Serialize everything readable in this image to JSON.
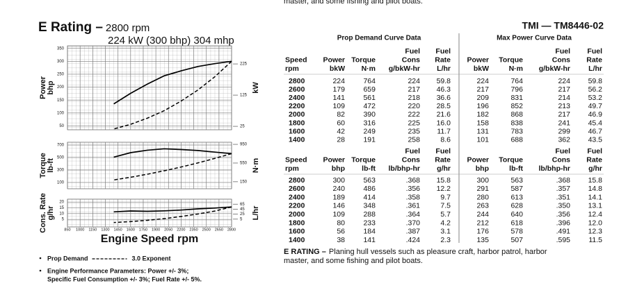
{
  "top_cutoff": "master, and some fishing and pilot boats.",
  "rating": {
    "title": "E Rating –",
    "rpm": "2800 rpm",
    "power": "224 kW (300 bhp) 304 mhp"
  },
  "doc_id": "TMI — TM8446-02",
  "chart": {
    "type": "line",
    "xlim": [
      850,
      2800
    ],
    "xticks": [
      850,
      1000,
      1150,
      1300,
      1450,
      1600,
      1750,
      1900,
      2050,
      2200,
      2350,
      2500,
      2650,
      2800
    ],
    "x_label": "Engine Speed rpm",
    "panels": [
      {
        "label_left": [
          "Power",
          "bhp"
        ],
        "label_right": "kW",
        "ylim": [
          35,
          360
        ],
        "yticks": [
          50,
          100,
          150,
          200,
          250,
          300,
          350
        ],
        "y2lim": [
          14,
          283
        ],
        "y2ticks": [
          25,
          125,
          225
        ]
      },
      {
        "label_left": [
          "Torque",
          "lb-ft"
        ],
        "label_right": "N·m",
        "ylim": [
          0,
          745
        ],
        "yticks": [
          100,
          300,
          500,
          700
        ],
        "y2lim": [
          0,
          995
        ],
        "y2ticks": [
          150,
          550,
          950
        ]
      },
      {
        "label_left": [
          "Cons. Rate",
          "g/hr"
        ],
        "label_right": "L/hr",
        "ylim": [
          -1.5,
          22.5
        ],
        "yticks": [
          5,
          10,
          15,
          20
        ],
        "y2lim": [
          -26,
          85
        ],
        "y2ticks": [
          5,
          25,
          45,
          65
        ]
      }
    ]
  },
  "notes": {
    "prop_demand": "Prop Demand",
    "exponent": "3.0 Exponent",
    "params": [
      "Engine Performance Parameters: Power +/- 3%;",
      "Specific Fuel Consumption  +/- 3%; Fuel Rate +/- 5%."
    ]
  },
  "tables": {
    "group_titles": [
      "Prop Demand Curve Data",
      "Max Power Curve Data"
    ],
    "metric": {
      "header": [
        [
          "Speed",
          "rpm"
        ],
        [
          "Power",
          "bkW"
        ],
        [
          "Torque",
          "N·m"
        ],
        [
          "Fuel",
          "Cons",
          "g/bkW-hr"
        ],
        [
          "Fuel",
          "Rate",
          "L/hr"
        ],
        [
          "Power",
          "bkW"
        ],
        [
          "Torque",
          "N·m"
        ],
        [
          "Fuel",
          "Cons",
          "g/bkW-hr"
        ],
        [
          "Fuel",
          "Rate",
          "L/hr"
        ]
      ],
      "rows": [
        [
          "2800",
          "224",
          "764",
          "224",
          "59.8",
          "224",
          "764",
          "224",
          "59.8"
        ],
        [
          "2600",
          "179",
          "659",
          "217",
          "46.3",
          "217",
          "796",
          "217",
          "56.2"
        ],
        [
          "2400",
          "141",
          "561",
          "218",
          "36.6",
          "209",
          "831",
          "214",
          "53.2"
        ],
        [
          "2200",
          "109",
          "472",
          "220",
          "28.5",
          "196",
          "852",
          "213",
          "49.7"
        ],
        [
          "2000",
          "82",
          "390",
          "222",
          "21.6",
          "182",
          "868",
          "217",
          "46.9"
        ],
        [
          "1800",
          "60",
          "316",
          "225",
          "16.0",
          "158",
          "838",
          "241",
          "45.4"
        ],
        [
          "1600",
          "42",
          "249",
          "235",
          "11.7",
          "131",
          "783",
          "299",
          "46.7"
        ],
        [
          "1400",
          "28",
          "191",
          "258",
          "8.6",
          "101",
          "688",
          "362",
          "43.5"
        ]
      ]
    },
    "imperial": {
      "header": [
        [
          "Speed",
          "rpm"
        ],
        [
          "Power",
          "bhp"
        ],
        [
          "Torque",
          "lb-ft"
        ],
        [
          "Fuel",
          "Cons",
          "lb/bhp-hr"
        ],
        [
          "Fuel",
          "Rate",
          "g/hr"
        ],
        [
          "Power",
          "bhp"
        ],
        [
          "Torque",
          "lb-ft"
        ],
        [
          "Fuel",
          "Cons",
          "lb/bhp-hr"
        ],
        [
          "Fuel",
          "Rate",
          "g/hr"
        ]
      ],
      "rows": [
        [
          "2800",
          "300",
          "563",
          ".368",
          "15.8",
          "300",
          "563",
          ".368",
          "15.8"
        ],
        [
          "2600",
          "240",
          "486",
          ".356",
          "12.2",
          "291",
          "587",
          ".357",
          "14.8"
        ],
        [
          "2400",
          "189",
          "414",
          ".358",
          "9.7",
          "280",
          "613",
          ".351",
          "14.1"
        ],
        [
          "2200",
          "146",
          "348",
          ".361",
          "7.5",
          "263",
          "628",
          ".350",
          "13.1"
        ],
        [
          "2000",
          "109",
          "288",
          ".364",
          "5.7",
          "244",
          "640",
          ".356",
          "12.4"
        ],
        [
          "1800",
          "80",
          "233",
          ".370",
          "4.2",
          "212",
          "618",
          ".396",
          "12.0"
        ],
        [
          "1600",
          "56",
          "184",
          ".387",
          "3.1",
          "176",
          "578",
          ".491",
          "12.3"
        ],
        [
          "1400",
          "38",
          "141",
          ".424",
          "2.3",
          "135",
          "507",
          ".595",
          "11.5"
        ]
      ]
    }
  },
  "footnote": {
    "lead": "E RATING –",
    "lines": [
      "Planing hull vessels such as pleasure craft, harbor patrol, harbor",
      "master, and some fishing and pilot boats."
    ]
  }
}
